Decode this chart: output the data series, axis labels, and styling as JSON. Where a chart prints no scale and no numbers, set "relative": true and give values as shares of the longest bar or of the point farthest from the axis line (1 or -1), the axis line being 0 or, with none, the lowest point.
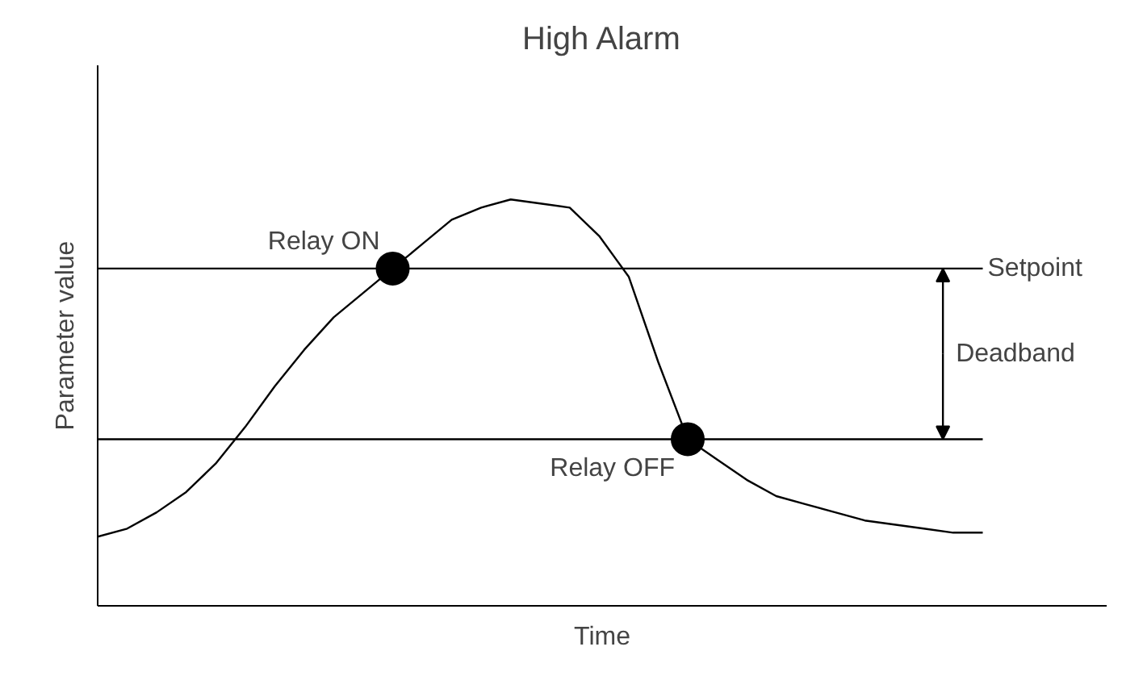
{
  "chart_data": {
    "type": "line",
    "relative": true,
    "title": "High Alarm",
    "xlabel": "Time",
    "ylabel": "Parameter value",
    "categories": [
      null,
      null,
      null,
      null,
      null,
      null,
      null,
      null,
      null,
      null,
      null,
      null,
      null,
      null,
      null,
      null,
      null,
      null,
      null,
      null,
      null,
      null,
      null,
      null,
      null,
      null,
      null,
      null,
      null,
      null,
      null
    ],
    "series": [
      {
        "color": "#000000",
        "values": [
          0.17,
          0.19,
          0.23,
          0.28,
          0.35,
          0.44,
          0.54,
          0.63,
          0.71,
          0.77,
          0.83,
          0.89,
          0.95,
          0.98,
          1,
          0.99,
          0.98,
          0.91,
          0.81,
          0.6,
          0.41,
          0.36,
          0.31,
          0.27,
          0.25,
          0.23,
          0.21,
          0.2,
          0.19,
          0.18,
          0.18
        ]
      }
    ],
    "ref_lines": [
      {
        "axis": "y",
        "value": 0.83,
        "label": "Setpoint",
        "color": "#000000"
      },
      {
        "axis": "y",
        "value": 0.41,
        "color": "#000000"
      }
    ],
    "annotations": [
      {
        "text": "Relay ON",
        "y": 0.83
      },
      {
        "text": "Relay OFF",
        "y": 0.41
      },
      "Deadband"
    ],
    "grid": false,
    "marker": "none",
    "line_style": "solid"
  }
}
